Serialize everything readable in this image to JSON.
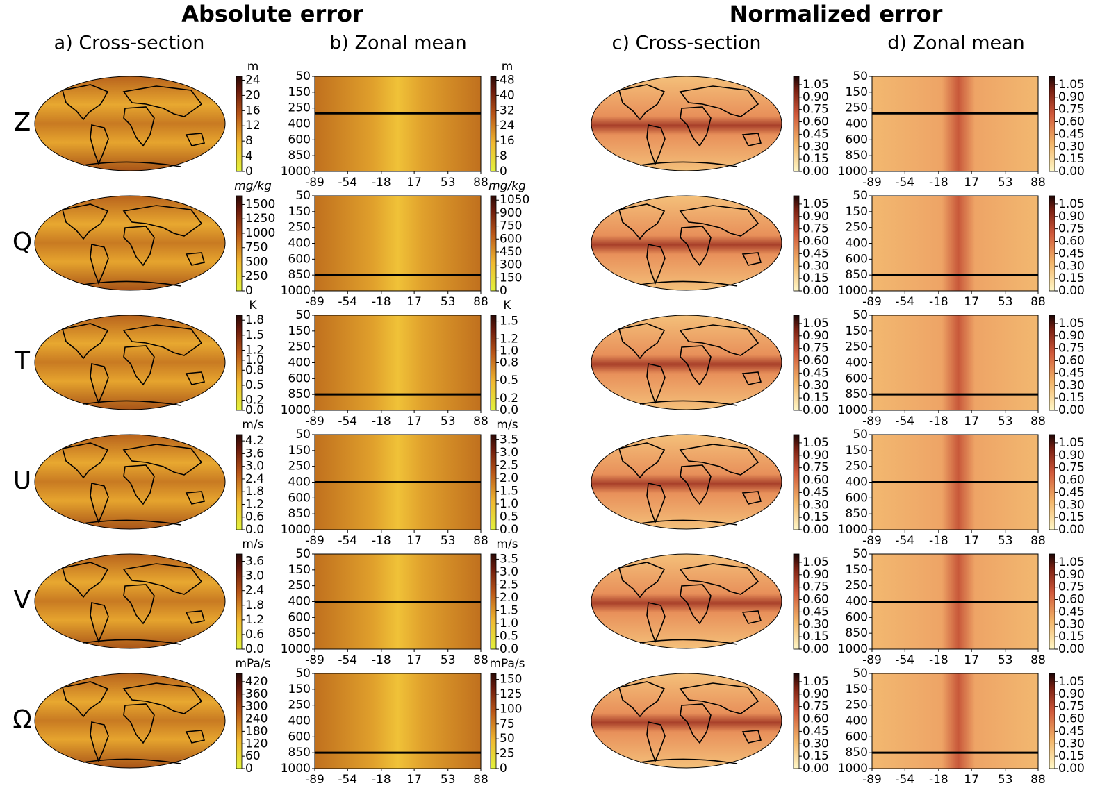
{
  "figure": {
    "groups": [
      {
        "title": "Absolute error",
        "panels": [
          "a) Cross-section",
          "b) Zonal mean"
        ]
      },
      {
        "title": "Normalized error",
        "panels": [
          "c) Cross-section",
          "d) Zonal mean"
        ]
      }
    ],
    "levels": [
      50,
      150,
      250,
      400,
      600,
      850,
      1000
    ],
    "latitudes": [
      -89,
      -54,
      -18,
      17,
      53,
      88
    ],
    "lat_lim": [
      -89,
      88
    ],
    "normalized_colorbar": {
      "lim": [
        0,
        1.15
      ],
      "ticks": [
        {
          "value": 0,
          "label": "0.00"
        },
        0.15,
        {
          "value": 0.3,
          "label": "0.30"
        },
        0.45,
        {
          "value": 0.6,
          "label": "0.60"
        },
        0.75,
        {
          "value": 0.9,
          "label": "0.90"
        },
        1.05
      ]
    },
    "rows": [
      {
        "variable": "Z",
        "level": 300,
        "map_colorbar": {
          "unit": "m",
          "lim": [
            0,
            25
          ],
          "ticks": [
            0,
            4,
            8,
            12,
            16,
            20,
            24
          ]
        },
        "zonal_colorbar": {
          "unit": "m",
          "lim": [
            0,
            50
          ],
          "ticks": [
            0,
            8,
            16,
            24,
            32,
            40,
            48
          ]
        }
      },
      {
        "variable": "Q",
        "level": 850,
        "map_colorbar": {
          "unit": "mg/kg",
          "lim": [
            0,
            1650
          ],
          "ticks": [
            0,
            250,
            500,
            750,
            1000,
            1250,
            1500
          ]
        },
        "zonal_colorbar": {
          "unit": "mg/kg",
          "lim": [
            0,
            1100
          ],
          "ticks": [
            0,
            150,
            300,
            450,
            600,
            750,
            900,
            1050
          ]
        }
      },
      {
        "variable": "T",
        "level": 850,
        "map_colorbar": {
          "unit": "K",
          "lim": [
            0,
            1.9
          ],
          "ticks": [
            {
              "value": 0,
              "label": "0.0"
            },
            0.2,
            0.5,
            0.8,
            {
              "value": 1,
              "label": "1.0"
            },
            1.2,
            1.5,
            1.8
          ]
        },
        "zonal_colorbar": {
          "unit": "K",
          "lim": [
            0,
            1.6
          ],
          "ticks": [
            {
              "value": 0,
              "label": "0.0"
            },
            0.2,
            0.5,
            0.8,
            {
              "value": 1,
              "label": "1.0"
            },
            1.2,
            1.5
          ]
        }
      },
      {
        "variable": "U",
        "level": 400,
        "map_colorbar": {
          "unit": "m/s",
          "lim": [
            0,
            4.5
          ],
          "ticks": [
            {
              "value": 0,
              "label": "0.0"
            },
            0.6,
            1.2,
            1.8,
            2.4,
            {
              "value": 3,
              "label": "3.0"
            },
            3.6,
            4.2
          ]
        },
        "zonal_colorbar": {
          "unit": "m/s",
          "lim": [
            0,
            3.7
          ],
          "ticks": [
            {
              "value": 0,
              "label": "0.0"
            },
            0.5,
            {
              "value": 1,
              "label": "1.0"
            },
            1.5,
            {
              "value": 2,
              "label": "2.0"
            },
            2.5,
            {
              "value": 3,
              "label": "3.0"
            },
            3.5
          ]
        }
      },
      {
        "variable": "V",
        "level": 400,
        "map_colorbar": {
          "unit": "m/s",
          "lim": [
            0,
            3.9
          ],
          "ticks": [
            {
              "value": 0,
              "label": "0.0"
            },
            0.6,
            1.2,
            1.8,
            2.4,
            {
              "value": 3,
              "label": "3.0"
            },
            3.6
          ]
        },
        "zonal_colorbar": {
          "unit": "m/s",
          "lim": [
            0,
            3.7
          ],
          "ticks": [
            {
              "value": 0,
              "label": "0.0"
            },
            0.5,
            {
              "value": 1,
              "label": "1.0"
            },
            1.5,
            {
              "value": 2,
              "label": "2.0"
            },
            2.5,
            {
              "value": 3,
              "label": "3.0"
            },
            3.5
          ]
        }
      },
      {
        "variable": "Ω",
        "level": 850,
        "map_colorbar": {
          "unit": "mPa/s",
          "lim": [
            0,
            460
          ],
          "ticks": [
            0,
            60,
            120,
            180,
            240,
            300,
            360,
            420
          ]
        },
        "zonal_colorbar": {
          "unit": "mPa/s",
          "lim": [
            0,
            160
          ],
          "ticks": [
            0,
            25,
            50,
            75,
            100,
            125,
            150
          ]
        }
      }
    ]
  }
}
